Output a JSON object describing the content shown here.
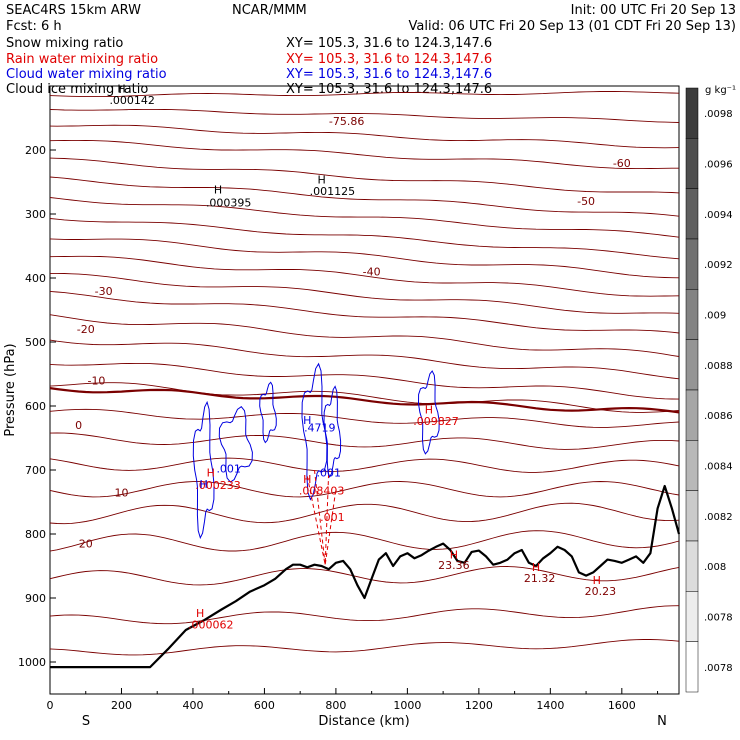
{
  "header": {
    "left1": "SEAC4RS 15km ARW",
    "left2": "Fcst:    6 h",
    "center1": "NCAR/MMM",
    "right1": "Init: 00 UTC Fri 20 Sep 13",
    "right2": "Valid: 06 UTC Fri 20 Sep 13 (01 CDT Fri 20 Sep 13)"
  },
  "legend": [
    {
      "label": "Snow mixing ratio",
      "xy": "XY= 105.3, 31.6 to 124.3,147.6",
      "color": "#000000"
    },
    {
      "label": "Rain water mixing ratio",
      "xy": "XY= 105.3, 31.6 to 124.3,147.6",
      "color": "#e00000"
    },
    {
      "label": "Cloud water mixing ratio",
      "xy": "XY= 105.3, 31.6 to 124.3,147.6",
      "color": "#0000e0"
    },
    {
      "label": "Cloud ice mixing ratio",
      "xy": "XY= 105.3, 31.6 to 124.3,147.6",
      "color": "#000000"
    }
  ],
  "chart_data": {
    "type": "cross-section",
    "xlabel": "Distance (km)",
    "ylabel": "Pressure (hPa)",
    "xlim": [
      0,
      1760
    ],
    "ylim": [
      1050,
      100
    ],
    "x_ticks": [
      0,
      200,
      400,
      600,
      800,
      1000,
      1200,
      1400,
      1600
    ],
    "y_ticks": [
      200,
      300,
      400,
      500,
      600,
      700,
      800,
      900,
      1000
    ],
    "x_end_labels": {
      "left": "S",
      "right": "N"
    },
    "colorbar": {
      "unit": "g kg⁻¹",
      "labels": [
        ".0098",
        ".0096",
        ".0094",
        ".0092",
        ".009",
        ".0088",
        ".0086",
        ".0084",
        ".0082",
        ".008",
        ".0078",
        ".0078"
      ]
    },
    "terrain": {
      "x": [
        0,
        280,
        330,
        380,
        430,
        480,
        520,
        560,
        600,
        630,
        660,
        680,
        700,
        720,
        740,
        760,
        780,
        800,
        820,
        840,
        860,
        880,
        900,
        920,
        940,
        960,
        980,
        1000,
        1020,
        1040,
        1060,
        1080,
        1100,
        1120,
        1140,
        1160,
        1180,
        1200,
        1220,
        1240,
        1260,
        1280,
        1300,
        1320,
        1340,
        1360,
        1380,
        1400,
        1420,
        1440,
        1460,
        1480,
        1500,
        1520,
        1540,
        1560,
        1580,
        1600,
        1620,
        1640,
        1660,
        1680,
        1700,
        1720,
        1740,
        1760
      ],
      "p": [
        1008,
        1008,
        980,
        950,
        935,
        918,
        905,
        890,
        880,
        870,
        855,
        848,
        848,
        852,
        848,
        850,
        855,
        845,
        842,
        855,
        880,
        900,
        870,
        840,
        830,
        850,
        835,
        830,
        838,
        833,
        826,
        820,
        815,
        825,
        842,
        845,
        828,
        826,
        835,
        848,
        845,
        840,
        830,
        825,
        845,
        850,
        838,
        830,
        820,
        825,
        835,
        860,
        865,
        860,
        850,
        840,
        842,
        845,
        840,
        835,
        845,
        830,
        760,
        725,
        760,
        800
      ]
    },
    "isotherms": [
      {
        "value": -75.86,
        "label": "-75.86",
        "label_at": [
          830,
          155
        ]
      },
      {
        "value": -60,
        "label": "-60",
        "label_at": [
          1600,
          220
        ]
      },
      {
        "value": -50,
        "label": "-50",
        "label_at": [
          1500,
          280
        ]
      },
      {
        "value": -40,
        "label": "-40",
        "label_at": [
          900,
          390
        ]
      },
      {
        "value": -30,
        "label": "-30",
        "label_at": [
          150,
          420
        ]
      },
      {
        "value": -20,
        "label": "-20",
        "label_at": [
          100,
          480
        ]
      },
      {
        "value": -10,
        "label": "-10",
        "label_at": [
          130,
          560
        ]
      },
      {
        "value": 0,
        "label": "0",
        "label_at": [
          80,
          630
        ]
      },
      {
        "value": 10,
        "label": "10",
        "label_at": [
          200,
          735
        ]
      },
      {
        "value": 20,
        "label": "20",
        "label_at": [
          100,
          815
        ]
      }
    ],
    "annotations": [
      {
        "text": "H",
        "x": 200,
        "p": 110,
        "color": "#000000"
      },
      {
        "text": ".000142",
        "x": 230,
        "p": 128,
        "color": "#000000"
      },
      {
        "text": "H",
        "x": 470,
        "p": 268,
        "color": "#000000"
      },
      {
        "text": ".000395",
        "x": 500,
        "p": 288,
        "color": "#000000"
      },
      {
        "text": "H",
        "x": 760,
        "p": 252,
        "color": "#000000"
      },
      {
        "text": ".001125",
        "x": 790,
        "p": 270,
        "color": "#000000"
      },
      {
        "text": "H",
        "x": 450,
        "p": 710,
        "color": "#e00000"
      },
      {
        "text": ".000233",
        "x": 470,
        "p": 730,
        "color": "#e00000"
      },
      {
        "text": "H",
        "x": 720,
        "p": 720,
        "color": "#e00000"
      },
      {
        "text": ".008403",
        "x": 760,
        "p": 738,
        "color": "#e00000"
      },
      {
        "text": ".001",
        "x": 790,
        "p": 780,
        "color": "#e00000"
      },
      {
        "text": "H",
        "x": 420,
        "p": 930,
        "color": "#e00000"
      },
      {
        "text": ".000062",
        "x": 450,
        "p": 948,
        "color": "#e00000"
      },
      {
        "text": "H",
        "x": 1060,
        "p": 612,
        "color": "#e00000"
      },
      {
        "text": ".009827",
        "x": 1080,
        "p": 630,
        "color": "#e00000"
      },
      {
        "text": "H",
        "x": 1130,
        "p": 838,
        "color": "#e00000"
      },
      {
        "text": "23.36",
        "x": 1130,
        "p": 855,
        "color": "#800000"
      },
      {
        "text": "H",
        "x": 1360,
        "p": 858,
        "color": "#e00000"
      },
      {
        "text": "21.32",
        "x": 1370,
        "p": 875,
        "color": "#800000"
      },
      {
        "text": "H",
        "x": 1530,
        "p": 878,
        "color": "#e00000"
      },
      {
        "text": "20.23",
        "x": 1540,
        "p": 895,
        "color": "#800000"
      },
      {
        "text": "H",
        "x": 720,
        "p": 628,
        "color": "#0000e0"
      },
      {
        "text": ".4719",
        "x": 755,
        "p": 640,
        "color": "#0000e0"
      },
      {
        "text": ".001",
        "x": 780,
        "p": 710,
        "color": "#0000e0"
      },
      {
        "text": ".001",
        "x": 500,
        "p": 704,
        "color": "#0000e0"
      },
      {
        "text": "H",
        "x": 430,
        "p": 728,
        "color": "#0000e0"
      }
    ]
  }
}
